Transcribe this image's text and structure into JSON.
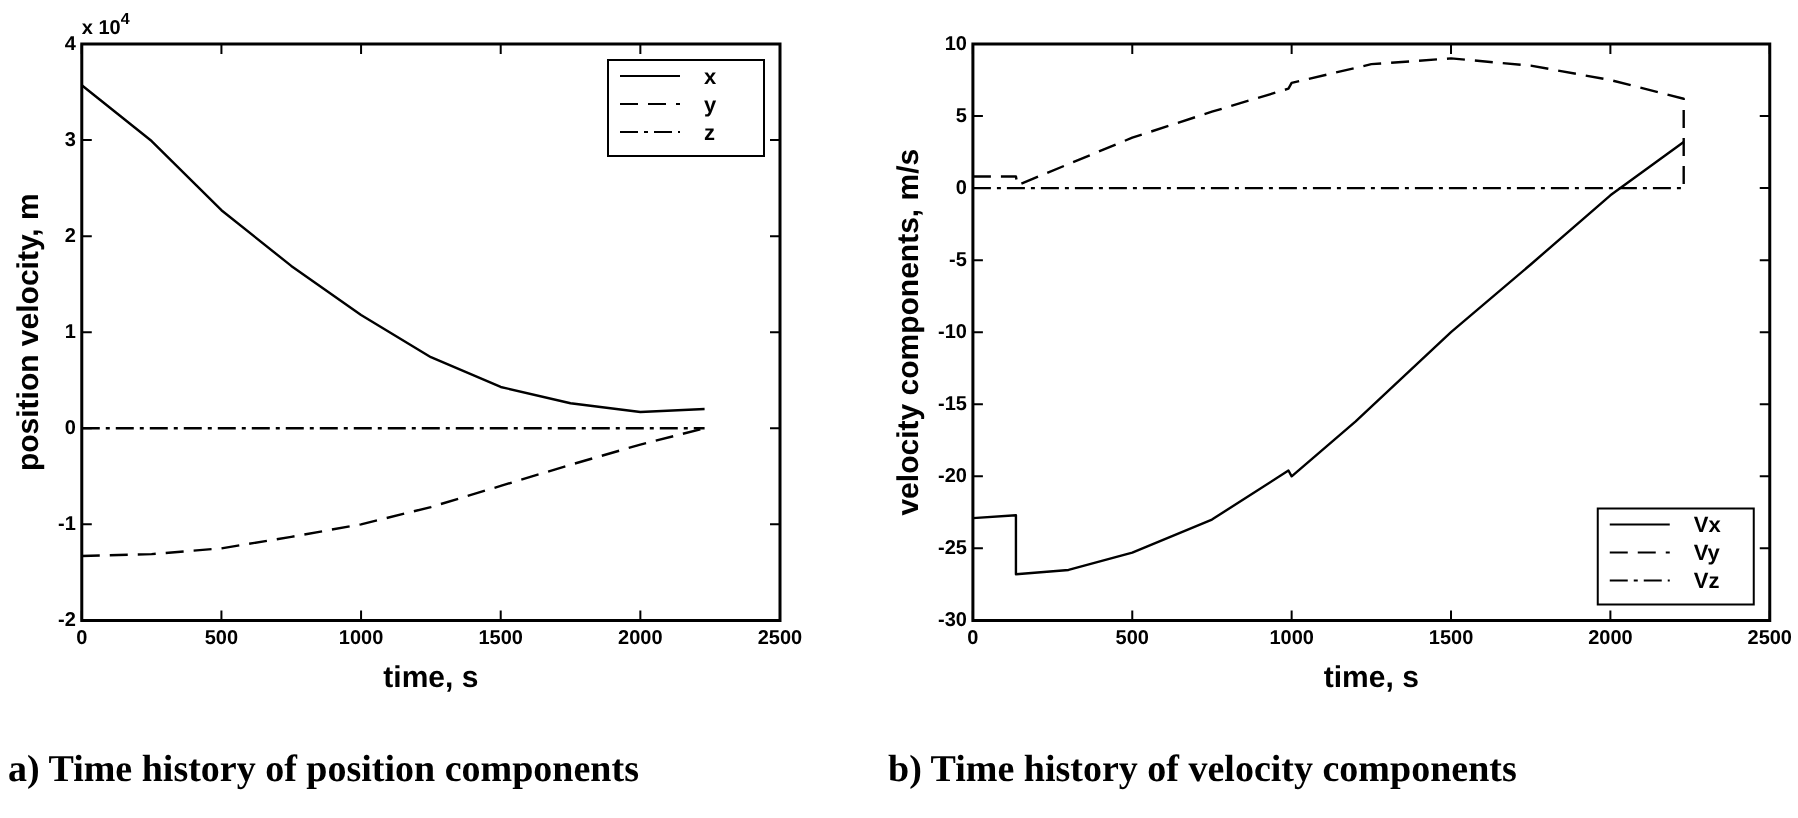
{
  "chart_data": [
    {
      "type": "line",
      "title": "a) Time history of position components",
      "xlabel": "time, s",
      "ylabel": "position velocity, m",
      "annotations": [
        "x 10$^{4}$"
      ],
      "xlim": [
        0,
        2500
      ],
      "xticks": [
        0,
        500,
        1000,
        1500,
        2000,
        2500
      ],
      "ylim": [
        -2,
        4
      ],
      "yticks": [
        -2,
        -1,
        0,
        1,
        2,
        3,
        4
      ],
      "grid": false,
      "legend": "top right",
      "marker": "none",
      "series": [
        {
          "name": "x",
          "color": "#000000",
          "line_style": "solid",
          "x": [
            0,
            250,
            500,
            750,
            1000,
            1250,
            1500,
            1750,
            2000,
            2230
          ],
          "values": [
            3.57,
            2.99,
            2.27,
            1.69,
            1.18,
            0.74,
            0.43,
            0.26,
            0.17,
            0.2
          ]
        },
        {
          "name": "y",
          "color": "#000000",
          "line_style": "dashed",
          "x": [
            0,
            250,
            500,
            750,
            1000,
            1250,
            1500,
            1750,
            2000,
            2230
          ],
          "values": [
            -1.33,
            -1.31,
            -1.25,
            -1.13,
            -1.0,
            -0.82,
            -0.6,
            -0.38,
            -0.17,
            0
          ]
        },
        {
          "name": "z",
          "color": "#000000",
          "line_style": "dashdot",
          "x": [
            0,
            2230
          ],
          "values": [
            0,
            0
          ]
        }
      ]
    },
    {
      "type": "line",
      "title": "b) Time history of velocity components",
      "xlabel": "time, s",
      "ylabel": "velocity components, m/s",
      "xlim": [
        0,
        2500
      ],
      "xticks": [
        0,
        500,
        1000,
        1500,
        2000,
        2500
      ],
      "ylim": [
        -30,
        10
      ],
      "yticks": [
        -30,
        -25,
        -20,
        -15,
        -10,
        -5,
        0,
        5,
        10
      ],
      "grid": false,
      "legend": "bottom right",
      "marker": "none",
      "series": [
        {
          "name": "Vx",
          "color": "#000000",
          "line_style": "solid",
          "x": [
            0,
            135,
            135,
            300,
            500,
            750,
            990,
            1000,
            1200,
            1500,
            1750,
            2000,
            2230
          ],
          "values": [
            -22.9,
            -22.7,
            -26.8,
            -26.5,
            -25.3,
            -23.0,
            -19.6,
            -20.0,
            -16.2,
            -10.0,
            -5.3,
            -0.5,
            3.2
          ]
        },
        {
          "name": "Vy",
          "color": "#000000",
          "line_style": "dashed",
          "x": [
            0,
            135,
            140,
            500,
            750,
            990,
            1000,
            1250,
            1500,
            1750,
            2000,
            2230,
            2230
          ],
          "values": [
            0.8,
            0.8,
            0.2,
            3.5,
            5.3,
            6.9,
            7.3,
            8.6,
            9.0,
            8.5,
            7.5,
            6.2,
            0
          ]
        },
        {
          "name": "Vz",
          "color": "#000000",
          "line_style": "dashdot",
          "x": [
            0,
            2230
          ],
          "values": [
            0,
            0
          ]
        }
      ]
    }
  ]
}
